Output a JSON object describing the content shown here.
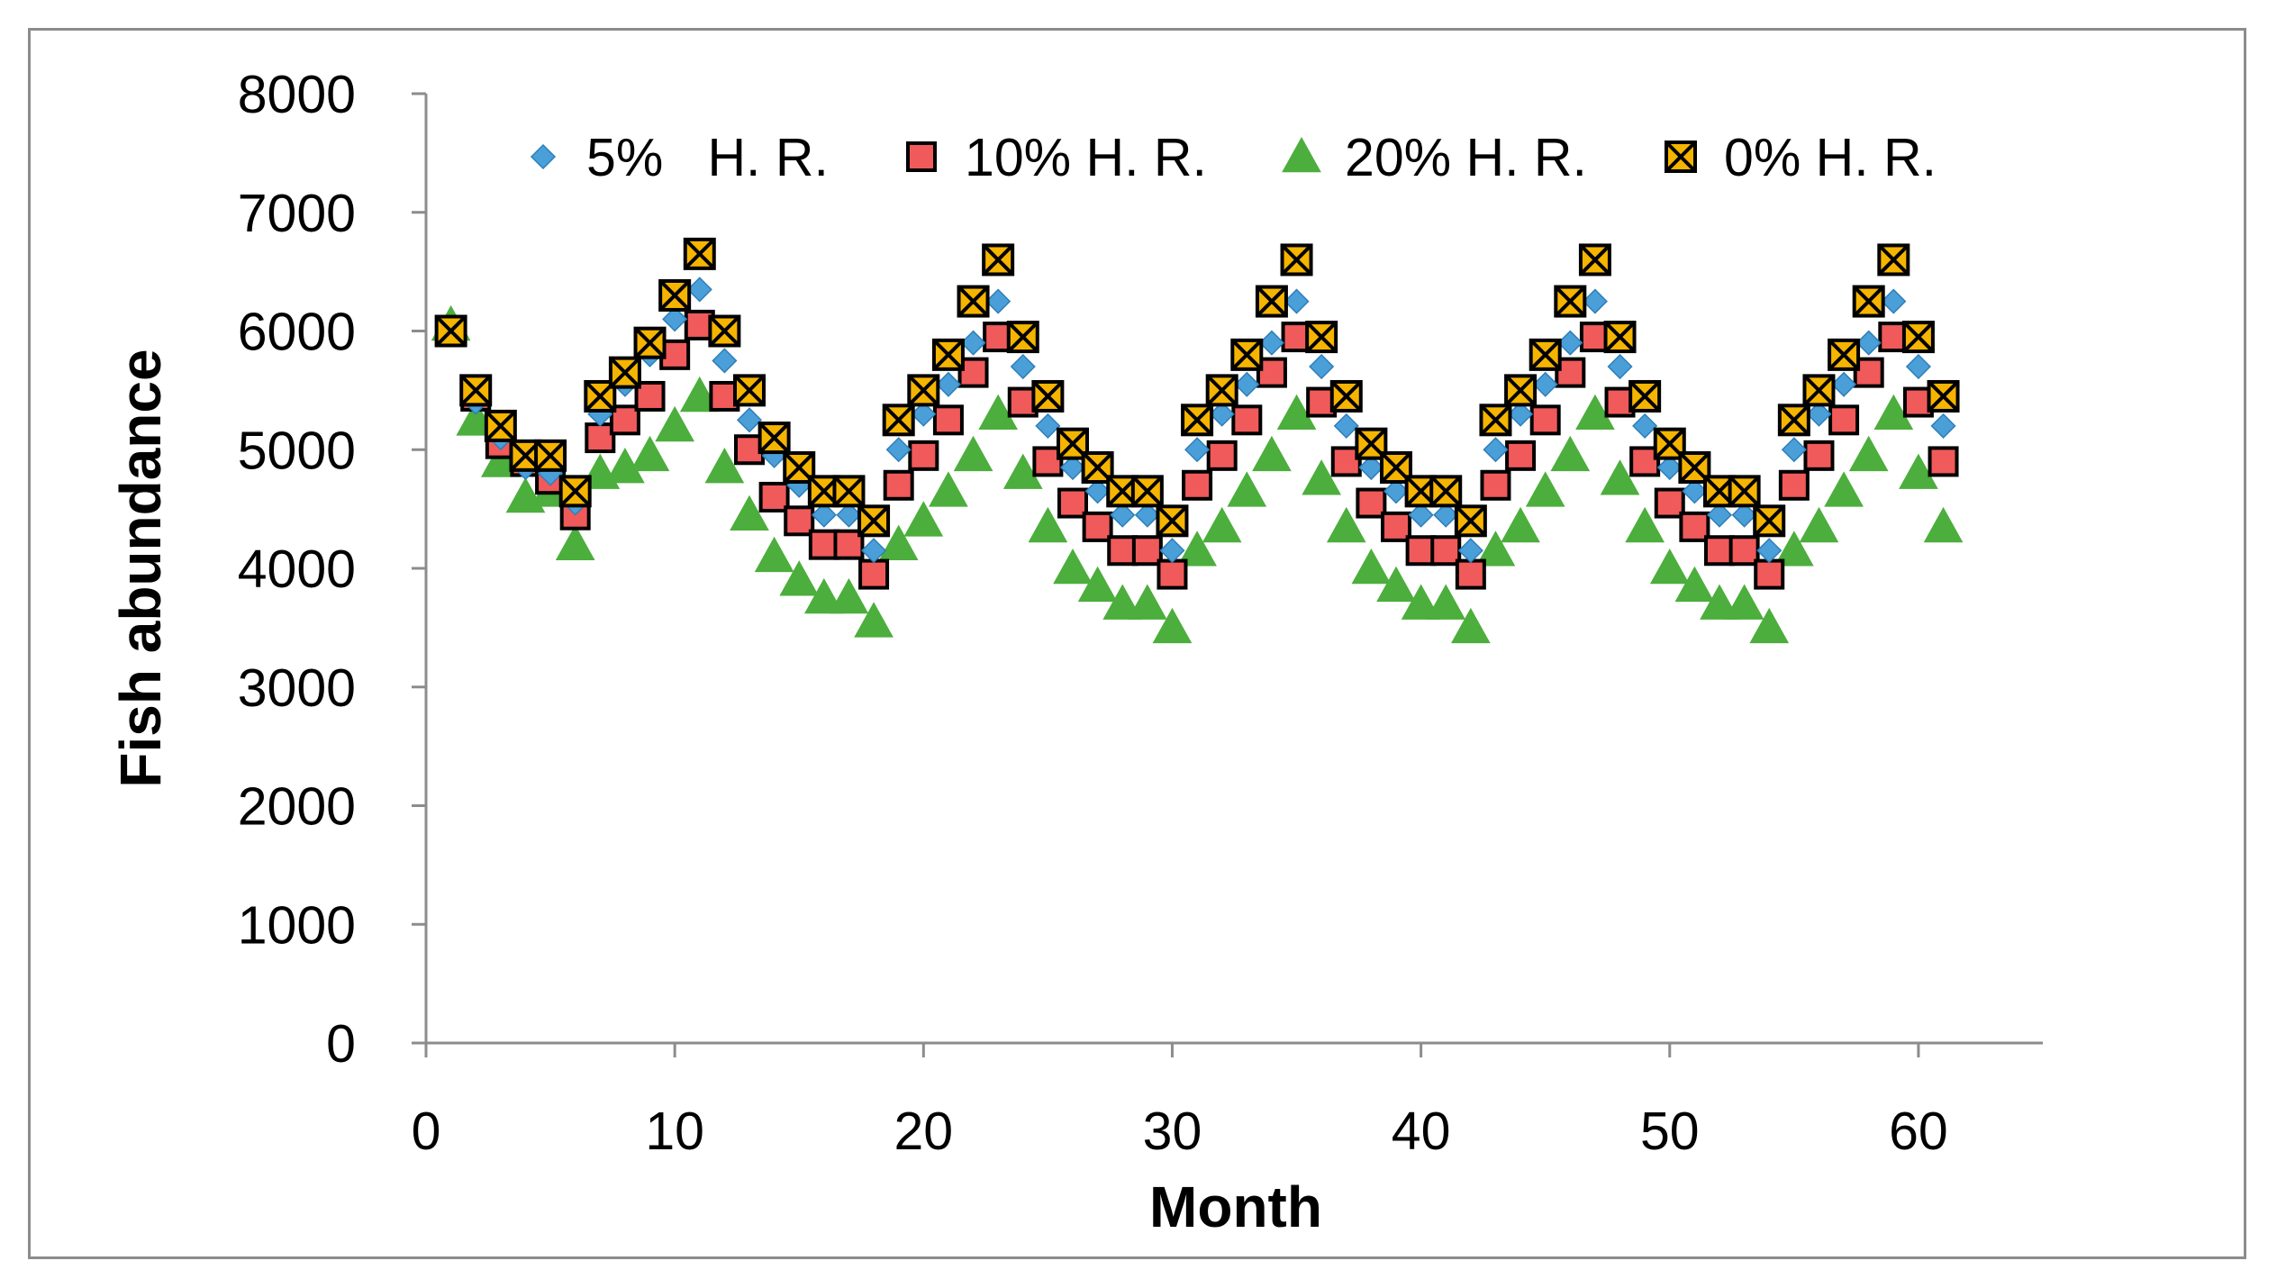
{
  "chart_data": {
    "type": "scatter",
    "title": "",
    "xlabel": "Month",
    "ylabel": "Fish abundance",
    "xlim": [
      0,
      65
    ],
    "ylim": [
      0,
      8000
    ],
    "xticks": [
      0,
      10,
      20,
      30,
      40,
      50,
      60
    ],
    "yticks": [
      0,
      1000,
      2000,
      3000,
      4000,
      5000,
      6000,
      7000,
      8000
    ],
    "grid": false,
    "legend_position": "top",
    "x": [
      1,
      2,
      3,
      4,
      5,
      6,
      7,
      8,
      9,
      10,
      11,
      12,
      13,
      14,
      15,
      16,
      17,
      18,
      19,
      20,
      21,
      22,
      23,
      24,
      25,
      26,
      27,
      28,
      29,
      30,
      31,
      32,
      33,
      34,
      35,
      36,
      37,
      38,
      39,
      40,
      41,
      42,
      43,
      44,
      45,
      46,
      47,
      48,
      49,
      50,
      51,
      52,
      53,
      54,
      55,
      56,
      57,
      58,
      59,
      60,
      61
    ],
    "series": [
      {
        "name": "5%   H. R.",
        "marker": "diamond",
        "color": "#4a9fd8",
        "values": [
          6000,
          5400,
          5100,
          4850,
          4800,
          4550,
          5300,
          5550,
          5800,
          6100,
          6350,
          5750,
          5250,
          4950,
          4700,
          4450,
          4450,
          4150,
          5000,
          5300,
          5550,
          5900,
          6250,
          5700,
          5200,
          4850,
          4650,
          4450,
          4450,
          4150,
          5000,
          5300,
          5550,
          5900,
          6250,
          5700,
          5200,
          4850,
          4650,
          4450,
          4450,
          4150,
          5000,
          5300,
          5550,
          5900,
          6250,
          5700,
          5200,
          4850,
          4650,
          4450,
          4450,
          4150,
          5000,
          5300,
          5550,
          5900,
          6250,
          5700,
          5200
        ]
      },
      {
        "name": "10% H. R.",
        "marker": "square",
        "color": "#f05a5a",
        "values": [
          6000,
          5450,
          5050,
          4900,
          4750,
          4450,
          5100,
          5250,
          5450,
          5800,
          6050,
          5450,
          5000,
          4600,
          4400,
          4200,
          4200,
          3950,
          4700,
          4950,
          5250,
          5650,
          5950,
          5400,
          4900,
          4550,
          4350,
          4150,
          4150,
          3950,
          4700,
          4950,
          5250,
          5650,
          5950,
          5400,
          4900,
          4550,
          4350,
          4150,
          4150,
          3950,
          4700,
          4950,
          5250,
          5650,
          5950,
          5400,
          4900,
          4550,
          4350,
          4150,
          4150,
          3950,
          4700,
          4950,
          5250,
          5650,
          5950,
          5400,
          4900
        ]
      },
      {
        "name": "20% H. R.",
        "marker": "triangle",
        "color": "#4cae3c",
        "values": [
          6050,
          5250,
          4900,
          4600,
          4650,
          4200,
          4800,
          4850,
          4950,
          5200,
          5450,
          4850,
          4450,
          4100,
          3900,
          3750,
          3750,
          3550,
          4200,
          4400,
          4650,
          4950,
          5300,
          4800,
          4350,
          4000,
          3850,
          3700,
          3700,
          3500,
          4150,
          4350,
          4650,
          4950,
          5300,
          4750,
          4350,
          4000,
          3850,
          3700,
          3700,
          3500,
          4150,
          4350,
          4650,
          4950,
          5300,
          4750,
          4350,
          4000,
          3850,
          3700,
          3700,
          3500,
          4150,
          4350,
          4650,
          4950,
          5300,
          4800,
          4350
        ]
      },
      {
        "name": "0% H. R.",
        "marker": "square-x",
        "color": "#f5b400",
        "values": [
          6000,
          5500,
          5200,
          4950,
          4950,
          4650,
          5450,
          5650,
          5900,
          6300,
          6650,
          6000,
          5500,
          5100,
          4850,
          4650,
          4650,
          4400,
          5250,
          5500,
          5800,
          6250,
          6600,
          5950,
          5450,
          5050,
          4850,
          4650,
          4650,
          4400,
          5250,
          5500,
          5800,
          6250,
          6600,
          5950,
          5450,
          5050,
          4850,
          4650,
          4650,
          4400,
          5250,
          5500,
          5800,
          6250,
          6600,
          5950,
          5450,
          5050,
          4850,
          4650,
          4650,
          4400,
          5250,
          5500,
          5800,
          6250,
          6600,
          5950,
          5450
        ]
      }
    ]
  }
}
